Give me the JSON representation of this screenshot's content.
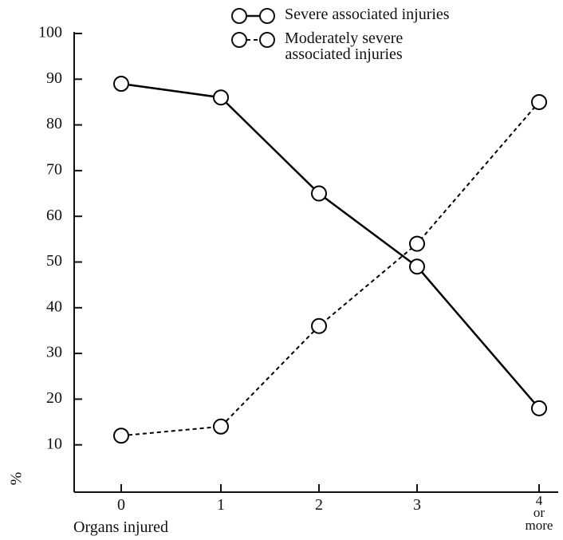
{
  "chart_data": {
    "type": "line",
    "xlabel": "Organs injured",
    "ylabel": "%",
    "categories": [
      "0",
      "1",
      "2",
      "3",
      "4\nor more"
    ],
    "series": [
      {
        "name": "Severe associated injuries",
        "color": "#000000",
        "line_style": "solid",
        "values": [
          89,
          86,
          65,
          49,
          18
        ]
      },
      {
        "name": "Moderately severe\nassociated injuries",
        "color": "#000000",
        "line_style": "dashed",
        "values": [
          12,
          14,
          36,
          54,
          85
        ]
      }
    ],
    "ylim": [
      0,
      100
    ],
    "yticks": [
      10,
      20,
      30,
      40,
      50,
      60,
      70,
      80,
      90,
      100
    ],
    "legend": "top-right"
  }
}
